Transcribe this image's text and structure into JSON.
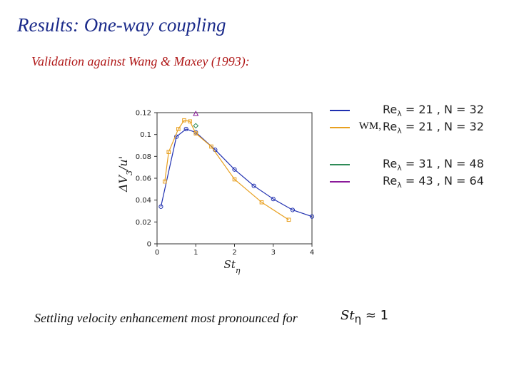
{
  "slide": {
    "title": "Results: One-way coupling",
    "subtitle": "Validation against Wang & Maxey (1993):",
    "bottom_text": "Settling velocity enhancement most pronounced for",
    "bottom_math": "St",
    "bottom_math_sub": "η",
    "bottom_math_rest": " ≈ 1"
  },
  "chart_data": {
    "type": "line",
    "xlabel": "St_η",
    "ylabel": "ΔV_3/u'",
    "xlim": [
      0,
      4
    ],
    "ylim": [
      0,
      0.12
    ],
    "xticks": [
      "0",
      "1",
      "2",
      "3",
      "4"
    ],
    "yticks": [
      "0",
      "0.02",
      "0.04",
      "0.06",
      "0.08",
      "0.1",
      "0.12"
    ],
    "grid": false,
    "legend_position": "right",
    "series": [
      {
        "name": "Re_λ = 21 , N = 32",
        "prefix": "",
        "color": "#1f2fb0",
        "marker": "circle",
        "points": [
          [
            0.1,
            0.034
          ],
          [
            0.5,
            0.098
          ],
          [
            0.75,
            0.105
          ],
          [
            1.0,
            0.102
          ],
          [
            1.5,
            0.086
          ],
          [
            2.0,
            0.068
          ],
          [
            2.5,
            0.053
          ],
          [
            3.0,
            0.041
          ],
          [
            3.5,
            0.031
          ],
          [
            4.0,
            0.025
          ]
        ]
      },
      {
        "name": "Re_λ = 21 , N = 32",
        "prefix": "WM,",
        "color": "#e8a020",
        "marker": "square",
        "points": [
          [
            0.2,
            0.057
          ],
          [
            0.3,
            0.084
          ],
          [
            0.55,
            0.105
          ],
          [
            0.7,
            0.113
          ],
          [
            0.85,
            0.112
          ],
          [
            1.0,
            0.101
          ],
          [
            1.4,
            0.089
          ],
          [
            2.0,
            0.059
          ],
          [
            2.7,
            0.038
          ],
          [
            3.4,
            0.022
          ]
        ]
      },
      {
        "name": "Re_λ = 31 , N = 48",
        "prefix": "",
        "color": "#2e8b57",
        "marker": "diamond",
        "points": [
          [
            1.0,
            0.108
          ]
        ]
      },
      {
        "name": "Re_λ = 43 , N = 64",
        "prefix": "",
        "color": "#8b1a9a",
        "marker": "triangle",
        "points": [
          [
            1.0,
            0.119
          ]
        ]
      }
    ]
  }
}
